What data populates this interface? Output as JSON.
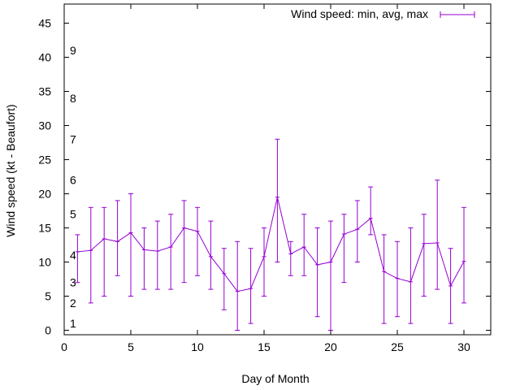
{
  "chart_data": {
    "type": "line",
    "title": "",
    "xlabel": "Day of Month",
    "ylabel": "Wind speed (kt - Beaufort)",
    "xlim": [
      0,
      32
    ],
    "ylim": [
      -1,
      48
    ],
    "xticks": [
      0,
      5,
      10,
      15,
      20,
      25,
      30
    ],
    "yticks": [
      0,
      5,
      10,
      15,
      20,
      25,
      30,
      35,
      40,
      45
    ],
    "beaufort_labels": [
      {
        "text": "1",
        "y": 1
      },
      {
        "text": "2",
        "y": 4
      },
      {
        "text": "3",
        "y": 7
      },
      {
        "text": "4",
        "y": 11
      },
      {
        "text": "5",
        "y": 17
      },
      {
        "text": "6",
        "y": 22
      },
      {
        "text": "7",
        "y": 28
      },
      {
        "text": "8",
        "y": 34
      },
      {
        "text": "9",
        "y": 41
      }
    ],
    "legend_position": "top-right",
    "grid": false,
    "series": [
      {
        "name": "Wind speed: min, avg, max",
        "color": "#9400d3",
        "x": [
          1,
          2,
          3,
          4,
          5,
          6,
          7,
          8,
          9,
          10,
          11,
          12,
          13,
          14,
          15,
          16,
          17,
          18,
          19,
          20,
          21,
          22,
          23,
          24,
          25,
          26,
          27,
          28,
          29,
          30
        ],
        "avg": [
          11.5,
          11.7,
          13.4,
          13.0,
          14.3,
          11.8,
          11.6,
          12.2,
          15.0,
          14.5,
          10.8,
          8.3,
          5.7,
          6.1,
          10.8,
          19.5,
          11.2,
          12.2,
          9.6,
          10.0,
          14.1,
          14.8,
          16.4,
          8.6,
          7.6,
          7.1,
          12.7,
          12.8,
          6.5,
          10.1
        ],
        "min": [
          7,
          4,
          5,
          8,
          5,
          6,
          6,
          6,
          7,
          8,
          6,
          3,
          0,
          1,
          5,
          10,
          8,
          8,
          2,
          0,
          7,
          10,
          14,
          1,
          2,
          1,
          5,
          6,
          1,
          4
        ],
        "max": [
          14,
          18,
          18,
          19,
          20,
          15,
          16,
          17,
          19,
          18,
          16,
          12,
          13,
          12,
          15,
          28,
          13,
          17,
          15,
          16,
          17,
          19,
          21,
          14,
          13,
          15,
          17,
          22,
          12,
          18
        ]
      }
    ]
  }
}
